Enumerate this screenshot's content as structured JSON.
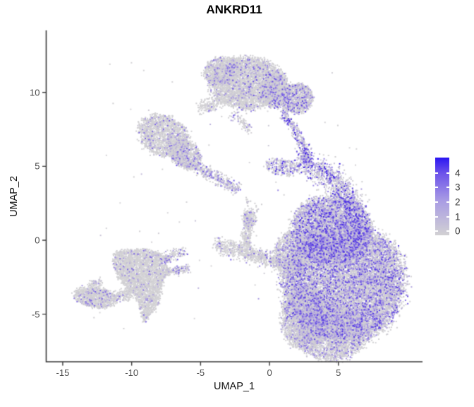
{
  "chart_data": {
    "type": "scatter",
    "title": "ANKRD11",
    "xlabel": "UMAP_1",
    "ylabel": "UMAP_2",
    "xlim": [
      -16.2,
      11.1
    ],
    "ylim": [
      -8.22,
      14.19
    ],
    "x_ticks": [
      -15,
      -10,
      -5,
      0,
      5
    ],
    "y_ticks": [
      -5,
      0,
      5,
      10
    ],
    "grid": false,
    "axis_color": "#383838",
    "tick_label_color": "#4a4a4a",
    "legend": {
      "position": "right",
      "ticks": [
        4,
        3,
        2,
        1,
        0
      ],
      "scale_max": 5.05,
      "scale_min": -0.27,
      "gradient_colors": [
        "#D2D1D3",
        "#A89BE4",
        "#6C52EA",
        "#2B16F2"
      ],
      "gradient_stops": [
        0,
        45,
        80,
        100
      ]
    },
    "palette": {
      "grey": "#D2D1D3",
      "mid": "#9F8DE4",
      "high": "#3415E3",
      "vmax": 4.4
    },
    "point_size": 2,
    "seed": 42,
    "clusters": [
      {
        "name": "topleft-hook-main",
        "shape": "ellipse",
        "cx": -7.68,
        "cy": 7.07,
        "rx": 1.9,
        "ry": 1.35,
        "rot": -20,
        "n": 1800,
        "p": 0.12,
        "emax": 3
      },
      {
        "name": "topleft-hook-lower",
        "shape": "ellipse",
        "cx": -6.14,
        "cy": 5.83,
        "rx": 1.3,
        "ry": 0.9,
        "rot": -30,
        "n": 900,
        "p": 0.18,
        "emax": 3
      },
      {
        "name": "topleft-tail",
        "shape": "band",
        "x1": -6.76,
        "y1": 5.64,
        "x2": -2.25,
        "y2": 3.44,
        "w": 0.4,
        "n": 450,
        "p": 0.38,
        "emax": 3.2
      },
      {
        "name": "tail-strays",
        "shape": "band",
        "x1": -1.74,
        "y1": 2.77,
        "x2": -0.82,
        "y2": 2.01,
        "w": 0.3,
        "n": 25,
        "p": 0.3,
        "emax": 3
      },
      {
        "name": "top-main",
        "shape": "ellipse",
        "cx": -1.64,
        "cy": 10.61,
        "rx": 2.7,
        "ry": 1.74,
        "rot": 0,
        "n": 3800,
        "p": 0.14,
        "emax": 3.2
      },
      {
        "name": "top-left-bump",
        "shape": "ellipse",
        "cx": -3.43,
        "cy": 11.47,
        "rx": 1.4,
        "ry": 0.9,
        "rot": 10,
        "n": 900,
        "p": 0.12,
        "emax": 3
      },
      {
        "name": "top-right-lobe",
        "shape": "ellipse",
        "cx": 0.41,
        "cy": 10.13,
        "rx": 1.1,
        "ry": 1.15,
        "rot": 0,
        "n": 1000,
        "p": 0.2,
        "emax": 3.4
      },
      {
        "name": "bridge-left",
        "shape": "band",
        "x1": -5.12,
        "y1": 8.98,
        "x2": -3.58,
        "y2": 9.27,
        "w": 0.45,
        "n": 150,
        "p": 0.12,
        "emax": 3
      },
      {
        "name": "top-drip",
        "shape": "band",
        "x1": -2.66,
        "y1": 8.6,
        "x2": -1.38,
        "y2": 7.4,
        "w": 0.35,
        "n": 80,
        "p": 0.3,
        "emax": 3
      },
      {
        "name": "topright-blob",
        "shape": "ellipse",
        "cx": 2.0,
        "cy": 9.6,
        "rx": 1.15,
        "ry": 1.0,
        "rot": 0,
        "n": 1000,
        "p": 0.32,
        "emax": 3.5
      },
      {
        "name": "stream-upper",
        "shape": "band",
        "x1": 0.92,
        "y1": 8.84,
        "x2": 2.35,
        "y2": 6.69,
        "w": 0.35,
        "n": 220,
        "p": 0.5,
        "emax": 4
      },
      {
        "name": "stream-lower",
        "shape": "band",
        "x1": 2.35,
        "y1": 6.69,
        "x2": 2.76,
        "y2": 5.35,
        "w": 0.35,
        "n": 160,
        "p": 0.5,
        "emax": 4
      },
      {
        "name": "stream-foot",
        "shape": "ellipse",
        "cx": 0.92,
        "cy": 4.92,
        "rx": 1.3,
        "ry": 0.55,
        "rot": -10,
        "n": 260,
        "p": 0.55,
        "emax": 4.2
      },
      {
        "name": "right-topband1",
        "shape": "band",
        "x1": 2.15,
        "y1": 5.49,
        "x2": 4.61,
        "y2": 4.2,
        "w": 0.85,
        "n": 500,
        "p": 0.62,
        "emax": 4.5
      },
      {
        "name": "right-topband2",
        "shape": "band",
        "x1": 4.61,
        "y1": 4.2,
        "x2": 6.4,
        "y2": 1.91,
        "w": 0.85,
        "n": 550,
        "p": 0.55,
        "emax": 4.5
      },
      {
        "name": "right-main",
        "shape": "ellipse",
        "cx": 5.37,
        "cy": -2.87,
        "rx": 4.35,
        "ry": 4.0,
        "rot": 0,
        "n": 14000,
        "p": 0.42,
        "emax": 3.6
      },
      {
        "name": "right-upper",
        "shape": "ellipse",
        "cx": 4.5,
        "cy": 0.72,
        "rx": 2.9,
        "ry": 2.3,
        "rot": 0,
        "n": 5200,
        "p": 0.5,
        "emax": 4
      },
      {
        "name": "right-left-protrusion",
        "shape": "ellipse",
        "cx": 1.54,
        "cy": -0.96,
        "rx": 1.15,
        "ry": 1.5,
        "rot": 0,
        "n": 1100,
        "p": 0.25,
        "emax": 3
      },
      {
        "name": "right-bottomleft-lobe",
        "shape": "ellipse",
        "cx": 2.56,
        "cy": -5.26,
        "rx": 1.7,
        "ry": 2.1,
        "rot": 0,
        "n": 2600,
        "p": 0.22,
        "emax": 3
      },
      {
        "name": "right-bottom-lobe",
        "shape": "ellipse",
        "cx": 4.5,
        "cy": -6.21,
        "rx": 2.6,
        "ry": 1.9,
        "rot": 0,
        "n": 2800,
        "p": 0.28,
        "emax": 3
      },
      {
        "name": "center-arm",
        "shape": "band",
        "x1": -3.84,
        "y1": -0.29,
        "x2": 0.82,
        "y2": -1.51,
        "w": 0.55,
        "n": 700,
        "p": 0.16,
        "emax": 3
      },
      {
        "name": "center-stub",
        "shape": "band",
        "x1": -1.54,
        "y1": 1.91,
        "x2": -1.69,
        "y2": -0.48,
        "w": 0.4,
        "n": 300,
        "p": 0.16,
        "emax": 3
      },
      {
        "name": "center-knob",
        "shape": "ellipse",
        "cx": -1.43,
        "cy": 1.43,
        "rx": 0.5,
        "ry": 0.55,
        "rot": 0,
        "n": 120,
        "p": 0.2,
        "emax": 3
      },
      {
        "name": "bottomleft-kite",
        "shape": "polygon",
        "pts": [
          [
            -11.21,
            -0.81
          ],
          [
            -9.31,
            -0.57
          ],
          [
            -7.68,
            -0.96
          ],
          [
            -7.11,
            -1.34
          ],
          [
            -7.78,
            -1.53
          ],
          [
            -7.01,
            -2.15
          ],
          [
            -7.68,
            -2.48
          ],
          [
            -8.03,
            -4.3
          ],
          [
            -9.06,
            -5.64
          ],
          [
            -9.67,
            -3.82
          ],
          [
            -10.95,
            -2.63
          ],
          [
            -11.36,
            -1.53
          ]
        ],
        "n": 3200,
        "p": 0.09,
        "emax": 3
      },
      {
        "name": "kite-arrow-upper",
        "shape": "band",
        "x1": -7.88,
        "y1": -1.34,
        "x2": -6.14,
        "y2": -0.72,
        "w": 0.35,
        "n": 130,
        "p": 0.32,
        "emax": 3.2
      },
      {
        "name": "kite-arrow-lower",
        "shape": "band",
        "x1": -7.37,
        "y1": -2.15,
        "x2": -5.83,
        "y2": -1.91,
        "w": 0.3,
        "n": 110,
        "p": 0.38,
        "emax": 3.2
      },
      {
        "name": "left-wing",
        "shape": "ellipse",
        "cx": -12.64,
        "cy": -3.87,
        "rx": 1.5,
        "ry": 0.7,
        "rot": -8,
        "n": 900,
        "p": 0.14,
        "emax": 3
      },
      {
        "name": "wing-bridge",
        "shape": "band",
        "x1": -11.21,
        "y1": -3.82,
        "x2": -10.08,
        "y2": -3.58,
        "w": 0.45,
        "n": 150,
        "p": 0.12,
        "emax": 3
      },
      {
        "name": "wing-antenna",
        "shape": "band",
        "x1": -13.0,
        "y1": -3.01,
        "x2": -12.23,
        "y2": -2.77,
        "w": 0.25,
        "n": 70,
        "p": 0.15,
        "emax": 3
      },
      {
        "name": "strays",
        "shape": "uniform",
        "x1": -13,
        "y1": -6,
        "x2": 7,
        "y2": 12,
        "n": 110,
        "p": 0.18,
        "emax": 2.5
      }
    ]
  }
}
